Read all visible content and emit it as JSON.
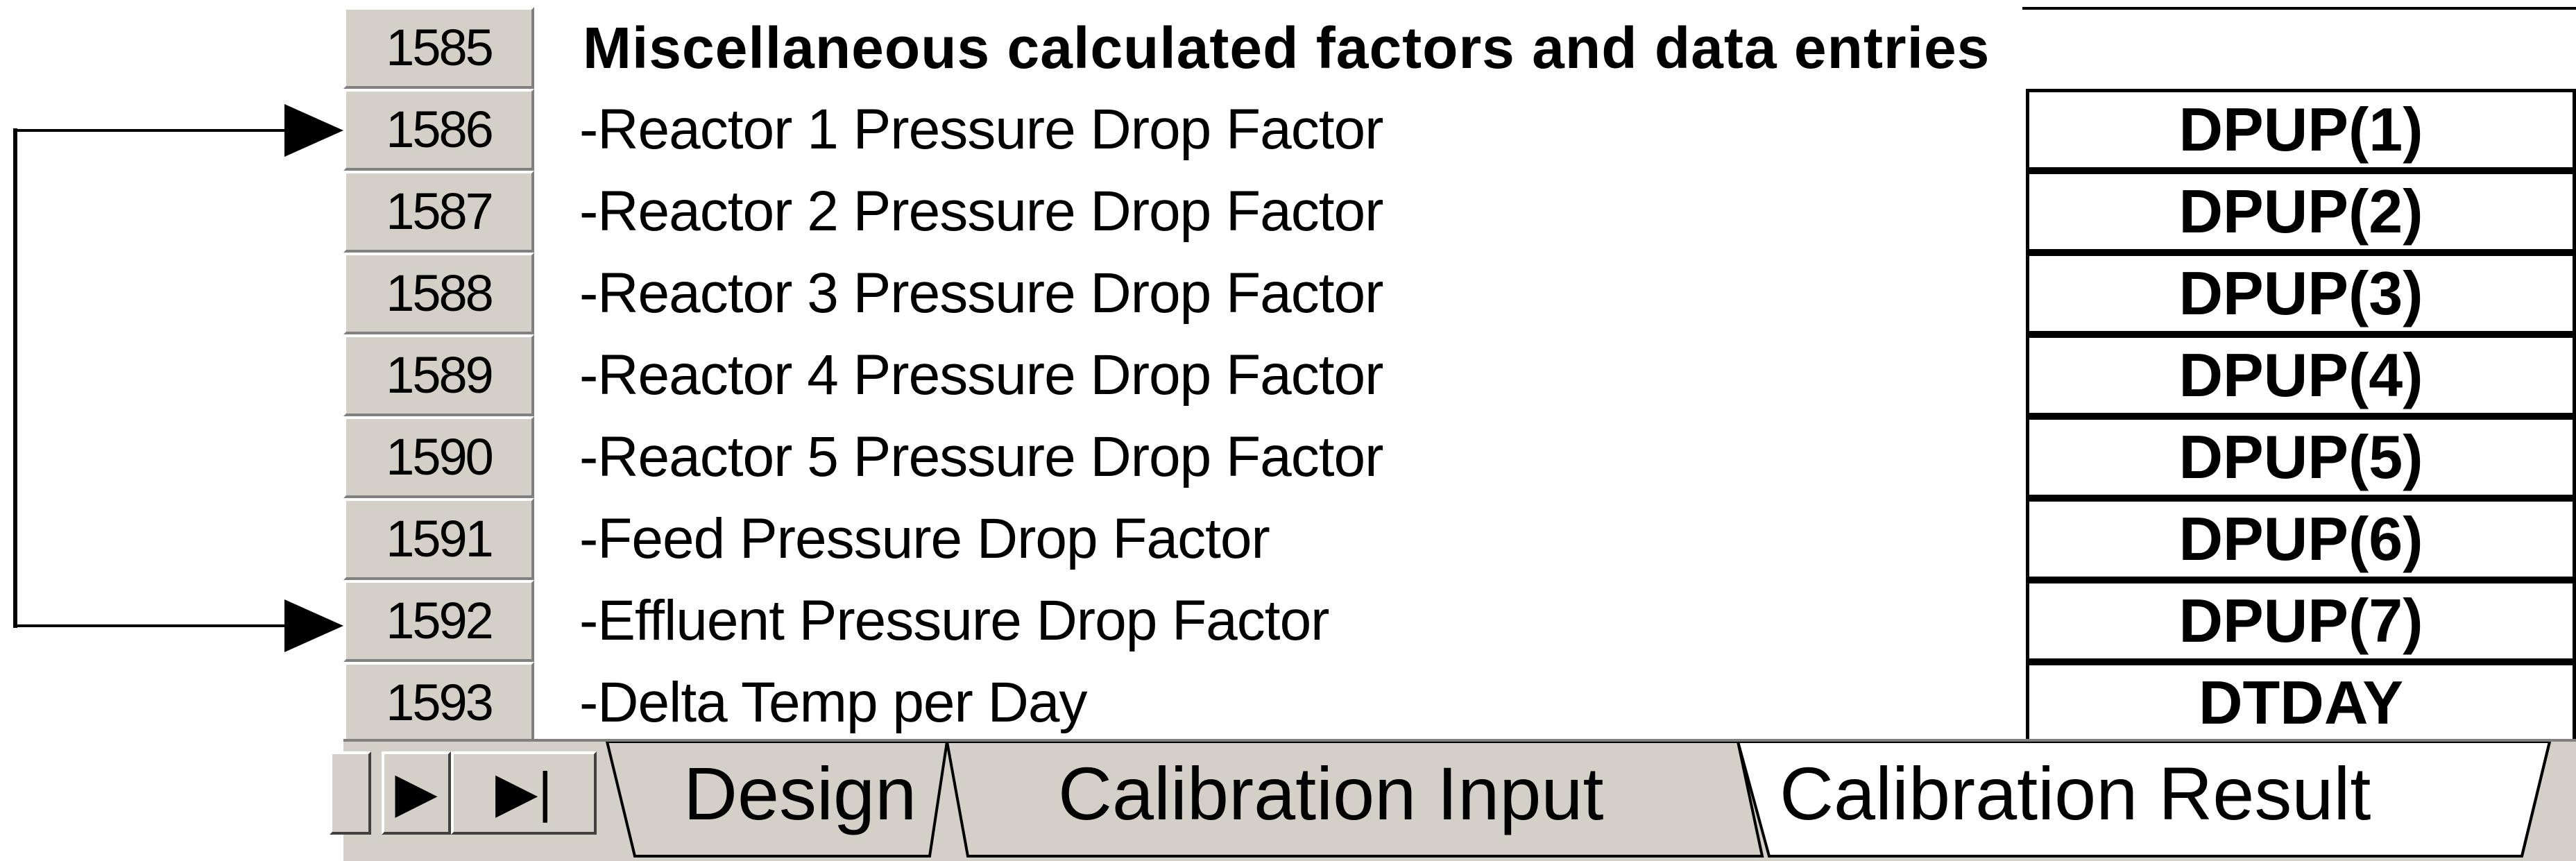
{
  "sheet": {
    "section_row": {
      "number": "1585",
      "title": "Miscellaneous calculated factors and data entries"
    },
    "rows": [
      {
        "number": "1586",
        "label": "-Reactor 1 Pressure Drop Factor",
        "value": "DPUP(1)"
      },
      {
        "number": "1587",
        "label": "-Reactor 2 Pressure Drop Factor",
        "value": "DPUP(2)"
      },
      {
        "number": "1588",
        "label": "-Reactor 3 Pressure Drop Factor",
        "value": "DPUP(3)"
      },
      {
        "number": "1589",
        "label": "-Reactor 4 Pressure Drop Factor",
        "value": "DPUP(4)"
      },
      {
        "number": "1590",
        "label": "-Reactor 5 Pressure Drop Factor",
        "value": "DPUP(5)"
      },
      {
        "number": "1591",
        "label": "-Feed Pressure Drop Factor",
        "value": "DPUP(6)"
      },
      {
        "number": "1592",
        "label": "-Effluent Pressure Drop Factor",
        "value": "DPUP(7)"
      },
      {
        "number": "1593",
        "label": "-Delta Temp per Day",
        "value": "DTDAY"
      }
    ]
  },
  "tabs": {
    "nav_next": "▶",
    "nav_last": "▶|",
    "items": [
      {
        "label": "Design",
        "active": false
      },
      {
        "label": "Calibration Input",
        "active": false
      },
      {
        "label": "Calibration Result",
        "active": true
      }
    ]
  }
}
